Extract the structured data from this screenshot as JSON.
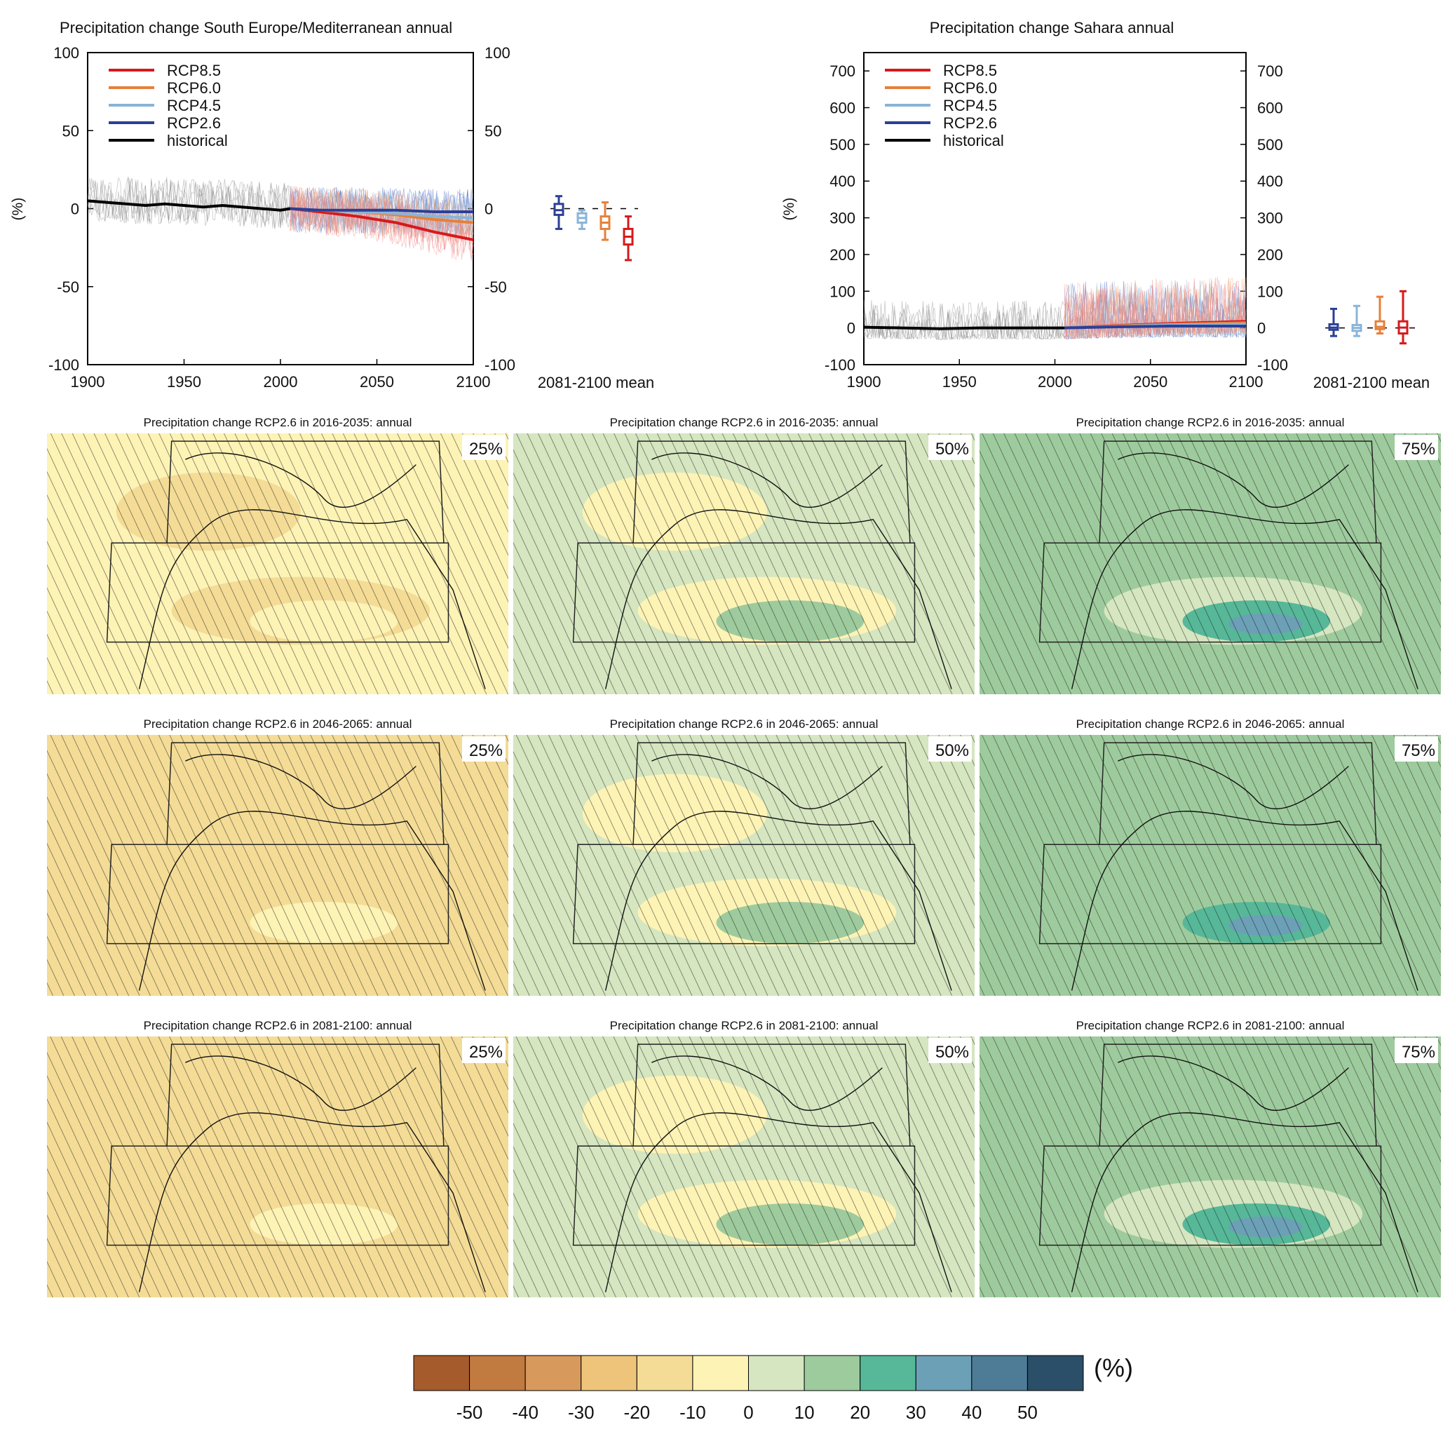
{
  "chart_data": [
    {
      "type": "line",
      "title": "Precipitation change South Europe/Mediterranean annual",
      "ylabel": "(%)",
      "xlim": [
        1900,
        2100
      ],
      "ylim": [
        -100,
        100
      ],
      "xticks": [
        1900,
        1950,
        2000,
        2050,
        2100
      ],
      "yticks": [
        100,
        50,
        0,
        -50,
        -100
      ],
      "legend": [
        {
          "name": "RCP8.5",
          "color": "#d7191c"
        },
        {
          "name": "RCP6.0",
          "color": "#e6803a"
        },
        {
          "name": "RCP4.5",
          "color": "#8ab4d8"
        },
        {
          "name": "RCP2.6",
          "color": "#2b3f96"
        },
        {
          "name": "historical",
          "color": "#000000"
        }
      ],
      "series": [
        {
          "name": "historical",
          "x": [
            1900,
            1910,
            1920,
            1930,
            1940,
            1950,
            1960,
            1970,
            1980,
            1990,
            2000,
            2005
          ],
          "y": [
            5,
            4,
            3,
            2,
            3,
            2,
            1,
            2,
            1,
            0,
            -1,
            0
          ],
          "spread": [
            -25,
            35
          ]
        },
        {
          "name": "RCP2.6",
          "x": [
            2005,
            2020,
            2040,
            2060,
            2080,
            2100
          ],
          "y": [
            0,
            -1,
            -1,
            -1,
            -2,
            -2
          ]
        },
        {
          "name": "RCP4.5",
          "x": [
            2005,
            2020,
            2040,
            2060,
            2080,
            2100
          ],
          "y": [
            0,
            -1,
            -2,
            -3,
            -5,
            -6
          ]
        },
        {
          "name": "RCP6.0",
          "x": [
            2005,
            2020,
            2040,
            2060,
            2080,
            2100
          ],
          "y": [
            0,
            -1,
            -2,
            -4,
            -7,
            -9
          ]
        },
        {
          "name": "RCP8.5",
          "x": [
            2005,
            2020,
            2040,
            2060,
            2080,
            2100
          ],
          "y": [
            0,
            -2,
            -5,
            -9,
            -15,
            -20
          ]
        }
      ],
      "mean_2081_2100": {
        "label": "2081-2100 mean",
        "boxes": [
          {
            "name": "RCP2.6",
            "color": "#2b3f96",
            "min": -13,
            "q1": -4,
            "median": -1,
            "q3": 3,
            "max": 8
          },
          {
            "name": "RCP4.5",
            "color": "#8ab4d8",
            "min": -13,
            "q1": -9,
            "median": -6,
            "q3": -3,
            "max": -1
          },
          {
            "name": "RCP6.0",
            "color": "#e6803a",
            "min": -20,
            "q1": -13,
            "median": -9,
            "q3": -5,
            "max": 4
          },
          {
            "name": "RCP8.5",
            "color": "#d7191c",
            "min": -33,
            "q1": -23,
            "median": -18,
            "q3": -13,
            "max": -5
          }
        ]
      }
    },
    {
      "type": "line",
      "title": "Precipitation change Sahara annual",
      "ylabel": "(%)",
      "xlim": [
        1900,
        2100
      ],
      "ylim": [
        -100,
        750
      ],
      "xticks": [
        1900,
        1950,
        2000,
        2050,
        2100
      ],
      "yticks": [
        700,
        600,
        500,
        400,
        300,
        200,
        100,
        0,
        -100
      ],
      "legend": [
        {
          "name": "RCP8.5",
          "color": "#d7191c"
        },
        {
          "name": "RCP6.0",
          "color": "#e6803a"
        },
        {
          "name": "RCP4.5",
          "color": "#8ab4d8"
        },
        {
          "name": "RCP2.6",
          "color": "#2b3f96"
        },
        {
          "name": "historical",
          "color": "#000000"
        }
      ],
      "series": [
        {
          "name": "historical",
          "x": [
            1900,
            1920,
            1940,
            1960,
            1980,
            2005
          ],
          "y": [
            2,
            0,
            -2,
            0,
            0,
            0
          ],
          "spread": [
            -60,
            150
          ]
        },
        {
          "name": "RCP2.6",
          "x": [
            2005,
            2030,
            2060,
            2100
          ],
          "y": [
            0,
            3,
            5,
            5
          ]
        },
        {
          "name": "RCP4.5",
          "x": [
            2005,
            2030,
            2060,
            2100
          ],
          "y": [
            0,
            4,
            8,
            10
          ]
        },
        {
          "name": "RCP6.0",
          "x": [
            2005,
            2030,
            2060,
            2100
          ],
          "y": [
            0,
            5,
            10,
            14
          ]
        },
        {
          "name": "RCP8.5",
          "x": [
            2005,
            2030,
            2060,
            2100
          ],
          "y": [
            0,
            6,
            12,
            18
          ]
        }
      ],
      "mean_2081_2100": {
        "label": "2081-2100 mean",
        "boxes": [
          {
            "name": "RCP2.6",
            "color": "#2b3f96",
            "min": -22,
            "q1": -5,
            "median": 1,
            "q3": 10,
            "max": 52
          },
          {
            "name": "RCP4.5",
            "color": "#8ab4d8",
            "min": -22,
            "q1": -8,
            "median": 0,
            "q3": 8,
            "max": 60
          },
          {
            "name": "RCP6.0",
            "color": "#e6803a",
            "min": -15,
            "q1": -3,
            "median": 3,
            "q3": 18,
            "max": 85
          },
          {
            "name": "RCP8.5",
            "color": "#d7191c",
            "min": -42,
            "q1": -15,
            "median": 1,
            "q3": 18,
            "max": 100
          }
        ]
      }
    },
    {
      "type": "heatmap",
      "panels": [
        {
          "title": "Precipitation change RCP2.6 in 2016-2035: annual",
          "pct": "25%",
          "median_change": -10
        },
        {
          "title": "Precipitation change RCP2.6 in 2016-2035: annual",
          "pct": "50%",
          "median_change": 2
        },
        {
          "title": "Precipitation change RCP2.6 in 2016-2035: annual",
          "pct": "75%",
          "median_change": 15
        },
        {
          "title": "Precipitation change RCP2.6 in 2046-2065: annual",
          "pct": "25%",
          "median_change": -12
        },
        {
          "title": "Precipitation change RCP2.6 in 2046-2065: annual",
          "pct": "50%",
          "median_change": 2
        },
        {
          "title": "Precipitation change RCP2.6 in 2046-2065: annual",
          "pct": "75%",
          "median_change": 18
        },
        {
          "title": "Precipitation change RCP2.6 in 2081-2100: annual",
          "pct": "25%",
          "median_change": -12
        },
        {
          "title": "Precipitation change RCP2.6 in 2081-2100: annual",
          "pct": "50%",
          "median_change": 2
        },
        {
          "title": "Precipitation change RCP2.6 in 2081-2100: annual",
          "pct": "75%",
          "median_change": 15
        }
      ],
      "colorbar": {
        "unit": "(%)",
        "ticks": [
          -50,
          -40,
          -30,
          -20,
          -10,
          0,
          10,
          20,
          30,
          40,
          50
        ],
        "colors": [
          "#a55b2c",
          "#c17a40",
          "#d89a5c",
          "#eec47a",
          "#f4dc96",
          "#fdf3b5",
          "#d5e6c0",
          "#9ecb9d",
          "#56b898",
          "#6ca0b7",
          "#4e7c96",
          "#2b4f68"
        ]
      }
    }
  ]
}
